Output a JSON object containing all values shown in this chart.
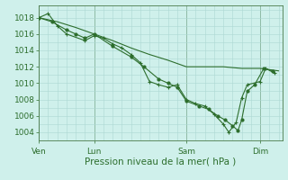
{
  "background_color": "#cff0eb",
  "grid_color": "#acd8d3",
  "line_color": "#2d6e2d",
  "marker_color": "#2d6e2d",
  "xlabel": "Pression niveau de la mer( hPa )",
  "ylim": [
    1003.0,
    1019.5
  ],
  "yticks": [
    1004,
    1006,
    1008,
    1010,
    1012,
    1014,
    1016,
    1018
  ],
  "day_labels": [
    "Ven",
    "Lun",
    "Sam",
    "Dim"
  ],
  "day_positions": [
    0,
    3,
    8,
    12
  ],
  "vline_positions": [
    0,
    3,
    8,
    12
  ],
  "series1_dots": [
    [
      0.0,
      1018.0
    ],
    [
      0.5,
      1018.5
    ],
    [
      1.0,
      1017.0
    ],
    [
      1.5,
      1016.0
    ],
    [
      2.5,
      1015.2
    ],
    [
      3.0,
      1015.8
    ],
    [
      3.5,
      1015.5
    ],
    [
      4.0,
      1014.8
    ],
    [
      4.5,
      1014.3
    ],
    [
      5.0,
      1013.5
    ],
    [
      5.5,
      1012.5
    ],
    [
      6.0,
      1010.2
    ],
    [
      6.5,
      1009.8
    ],
    [
      7.0,
      1009.5
    ],
    [
      7.5,
      1009.8
    ],
    [
      8.0,
      1008.0
    ],
    [
      8.5,
      1007.5
    ],
    [
      9.0,
      1007.2
    ],
    [
      9.5,
      1006.2
    ],
    [
      10.0,
      1005.0
    ],
    [
      10.3,
      1004.0
    ],
    [
      10.7,
      1005.2
    ],
    [
      11.0,
      1008.2
    ],
    [
      11.3,
      1009.8
    ],
    [
      12.0,
      1010.2
    ],
    [
      12.3,
      1011.8
    ],
    [
      12.8,
      1011.2
    ]
  ],
  "series2_dots": [
    [
      0.0,
      1018.0
    ],
    [
      0.7,
      1017.5
    ],
    [
      1.5,
      1016.5
    ],
    [
      2.0,
      1016.0
    ],
    [
      2.5,
      1015.5
    ],
    [
      3.0,
      1016.0
    ],
    [
      4.0,
      1014.5
    ],
    [
      5.0,
      1013.2
    ],
    [
      5.7,
      1012.0
    ],
    [
      6.5,
      1010.5
    ],
    [
      7.0,
      1010.0
    ],
    [
      7.5,
      1009.5
    ],
    [
      8.0,
      1007.8
    ],
    [
      8.7,
      1007.2
    ],
    [
      9.2,
      1006.8
    ],
    [
      9.7,
      1006.0
    ],
    [
      10.1,
      1005.5
    ],
    [
      10.5,
      1004.8
    ],
    [
      10.8,
      1004.2
    ],
    [
      11.0,
      1005.5
    ],
    [
      11.3,
      1009.0
    ],
    [
      11.7,
      1009.8
    ],
    [
      12.2,
      1011.8
    ],
    [
      12.7,
      1011.5
    ]
  ],
  "series3_smooth": [
    [
      0.0,
      1018.0
    ],
    [
      1.0,
      1017.5
    ],
    [
      2.0,
      1016.8
    ],
    [
      3.0,
      1016.0
    ],
    [
      4.0,
      1015.2
    ],
    [
      5.0,
      1014.3
    ],
    [
      6.0,
      1013.5
    ],
    [
      7.0,
      1012.8
    ],
    [
      8.0,
      1012.0
    ],
    [
      9.0,
      1012.0
    ],
    [
      10.0,
      1012.0
    ],
    [
      11.0,
      1011.8
    ],
    [
      12.0,
      1011.8
    ],
    [
      13.0,
      1011.5
    ]
  ],
  "xlim": [
    0,
    13.2
  ],
  "tick_label_fontsize": 6.5,
  "xlabel_fontsize": 7.5,
  "figsize": [
    3.2,
    2.0
  ],
  "dpi": 100,
  "grid_minor_n": 5
}
